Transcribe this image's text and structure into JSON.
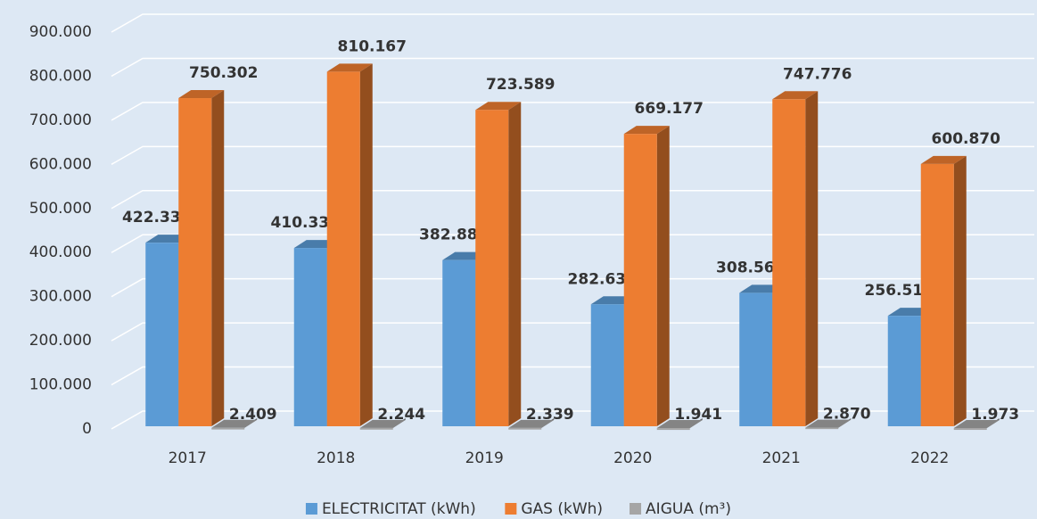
{
  "chart_data": {
    "type": "bar3d",
    "categories": [
      "2017",
      "2018",
      "2019",
      "2020",
      "2021",
      "2022"
    ],
    "series": [
      {
        "name": "ELECTRICITAT (kWh)",
        "color": "#5b9bd5",
        "values": [
          422331,
          410332,
          382885,
          282630,
          308567,
          256519
        ],
        "value_labels": [
          "422.331",
          "410.332",
          "382.885",
          "282.630",
          "308.567",
          "256.519"
        ]
      },
      {
        "name": "GAS (kWh)",
        "color": "#ed7d31",
        "values": [
          750302,
          810167,
          723589,
          669177,
          747776,
          600870
        ],
        "value_labels": [
          "750.302",
          "810.167",
          "723.589",
          "669.177",
          "747.776",
          "600.870"
        ]
      },
      {
        "name": "AIGUA (m³)",
        "color": "#a5a5a5",
        "values": [
          2409,
          2244,
          2339,
          1941,
          2870,
          1973
        ],
        "value_labels": [
          "2.409",
          "2.244",
          "2.339",
          "1.941",
          "2.870",
          "1.973"
        ]
      }
    ],
    "ylim": [
      0,
      900000
    ],
    "yticks": [
      0,
      {
        "value": 100000,
        "label": "100.000"
      },
      {
        "value": 200000,
        "label": "200.000"
      },
      {
        "value": 300000,
        "label": "300.000"
      },
      {
        "value": 400000,
        "label": "400.000"
      },
      {
        "value": 500000,
        "label": "500.000"
      },
      {
        "value": 600000,
        "label": "600.000"
      },
      {
        "value": 700000,
        "label": "700.000"
      },
      {
        "value": 800000,
        "label": "800.000"
      },
      {
        "value": 900000,
        "label": "900.000"
      }
    ],
    "grid": true,
    "legend": "bottom"
  }
}
